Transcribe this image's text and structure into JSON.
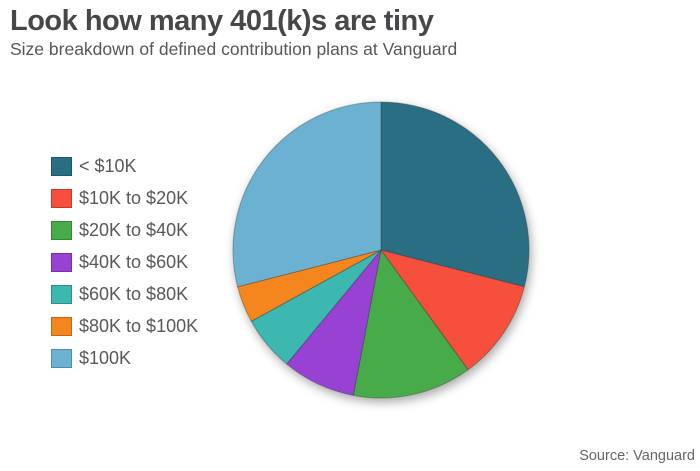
{
  "header": {
    "title": "Look how many 401(k)s are tiny",
    "subtitle": "Size breakdown of defined contribution plans at Vanguard"
  },
  "footer": {
    "source": "Source: Vanguard"
  },
  "chart_data": {
    "type": "pie",
    "title": "Look how many 401(k)s are tiny",
    "subtitle": "Size breakdown of defined contribution plans at Vanguard",
    "unit": "percent of plans (estimated from slice angles)",
    "start_angle_deg": 0,
    "direction": "clockwise",
    "legend_position": "left",
    "grid": false,
    "slice_stroke": "rgba(45,45,45,0.35)",
    "slices": [
      {
        "label": "< $10K",
        "value": 29,
        "color": "#2a6e84"
      },
      {
        "label": "$10K to $20K",
        "value": 11,
        "color": "#f6503c"
      },
      {
        "label": "$20K to $40K",
        "value": 13,
        "color": "#47ab49"
      },
      {
        "label": "$40K to $60K",
        "value": 8,
        "color": "#9842d3"
      },
      {
        "label": "$60K to $80K",
        "value": 6,
        "color": "#3db8b0"
      },
      {
        "label": "$80K to $100K",
        "value": 4,
        "color": "#f5861e"
      },
      {
        "label": "$100K",
        "value": 29,
        "color": "#6bb2d2"
      }
    ]
  }
}
